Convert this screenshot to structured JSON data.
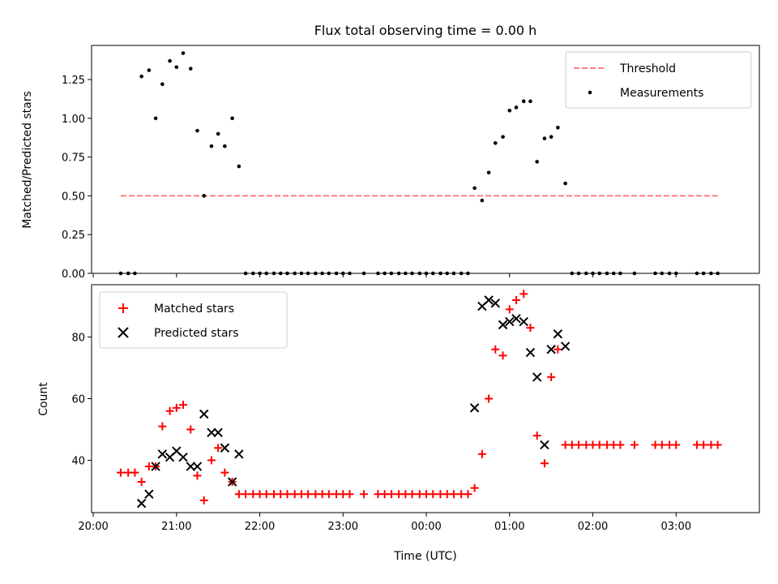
{
  "chart_data": {
    "title": "Flux total observing time = 0.00 h",
    "xlabel": "Time (UTC)",
    "x_tick_labels": [
      "20:00",
      "21:00",
      "22:00",
      "23:00",
      "00:00",
      "01:00",
      "02:00",
      "03:00"
    ],
    "x_tick_hours": [
      20,
      21,
      22,
      23,
      24,
      25,
      26,
      27
    ],
    "xlim": [
      19.98,
      28.0
    ],
    "panels": [
      {
        "type": "scatter",
        "ylabel": "Matched/Predicted stars",
        "ylim": [
          0,
          1.47
        ],
        "y_ticks": [
          0,
          0.25,
          0.5,
          0.75,
          1.0,
          1.25
        ],
        "y_tick_labels": [
          "0.00",
          "0.25",
          "0.50",
          "0.75",
          "1.00",
          "1.25"
        ],
        "legend": {
          "placement": "top-right",
          "entries": [
            "Threshold",
            "Measurements"
          ]
        },
        "threshold": {
          "name": "Threshold",
          "y": 0.5,
          "x_start": 20.33,
          "x_end": 27.5,
          "color": "#ff8080"
        },
        "series": [
          {
            "name": "Measurements",
            "color": "#000000",
            "marker": "dot",
            "x": [
              20.33,
              20.42,
              20.5,
              20.58,
              20.67,
              20.75,
              20.83,
              20.92,
              21.0,
              21.08,
              21.17,
              21.25,
              21.33,
              21.42,
              21.5,
              21.58,
              21.67,
              21.75,
              21.83,
              21.92,
              22.0,
              22.08,
              22.17,
              22.25,
              22.33,
              22.42,
              22.5,
              22.58,
              22.67,
              22.75,
              22.83,
              22.92,
              23.0,
              23.08,
              23.25,
              23.42,
              23.5,
              23.58,
              23.67,
              23.75,
              23.83,
              23.92,
              24.0,
              24.08,
              24.17,
              24.25,
              24.33,
              24.42,
              24.5,
              24.58,
              24.67,
              24.75,
              24.83,
              24.92,
              25.0,
              25.08,
              25.17,
              25.25,
              25.33,
              25.42,
              25.5,
              25.58,
              25.67,
              25.75,
              25.83,
              25.92,
              26.0,
              26.08,
              26.17,
              26.25,
              26.33,
              26.5,
              26.75,
              26.83,
              26.92,
              27.0,
              27.25,
              27.33,
              27.42,
              27.5
            ],
            "y": [
              0,
              0,
              0,
              1.27,
              1.31,
              1.0,
              1.22,
              1.37,
              1.33,
              1.42,
              1.32,
              0.92,
              0.5,
              0.82,
              0.9,
              0.82,
              1.0,
              0.69,
              0,
              0,
              0,
              0,
              0,
              0,
              0,
              0,
              0,
              0,
              0,
              0,
              0,
              0,
              0,
              0,
              0,
              0,
              0,
              0,
              0,
              0,
              0,
              0,
              0,
              0,
              0,
              0,
              0,
              0,
              0,
              0.55,
              0.47,
              0.65,
              0.84,
              0.88,
              1.05,
              1.07,
              1.11,
              1.11,
              0.72,
              0.87,
              0.88,
              0.94,
              0.58,
              0,
              0,
              0,
              0,
              0,
              0,
              0,
              0,
              0,
              0,
              0,
              0,
              0,
              0,
              0,
              0,
              0
            ]
          }
        ]
      },
      {
        "type": "scatter",
        "ylabel": "Count",
        "ylim": [
          23,
          97
        ],
        "y_ticks": [
          40,
          60,
          80
        ],
        "y_tick_labels": [
          "40",
          "60",
          "80"
        ],
        "legend": {
          "placement": "top-left",
          "entries": [
            "Matched stars",
            "Predicted stars"
          ]
        },
        "series": [
          {
            "name": "Matched stars",
            "color": "#ff0000",
            "marker": "plus",
            "x": [
              20.33,
              20.42,
              20.5,
              20.58,
              20.67,
              20.75,
              20.83,
              20.92,
              21.0,
              21.08,
              21.17,
              21.25,
              21.33,
              21.42,
              21.5,
              21.58,
              21.67,
              21.75,
              21.83,
              21.92,
              22.0,
              22.08,
              22.17,
              22.25,
              22.33,
              22.42,
              22.5,
              22.58,
              22.67,
              22.75,
              22.83,
              22.92,
              23.0,
              23.08,
              23.25,
              23.42,
              23.5,
              23.58,
              23.67,
              23.75,
              23.83,
              23.92,
              24.0,
              24.08,
              24.17,
              24.25,
              24.33,
              24.42,
              24.5,
              24.58,
              24.67,
              24.75,
              24.83,
              24.92,
              25.0,
              25.08,
              25.17,
              25.25,
              25.33,
              25.42,
              25.5,
              25.58,
              25.67,
              25.75,
              25.83,
              25.92,
              26.0,
              26.08,
              26.17,
              26.25,
              26.33,
              26.5,
              26.75,
              26.83,
              26.92,
              27.0,
              27.25,
              27.33,
              27.42,
              27.5
            ],
            "y": [
              36,
              36,
              36,
              33,
              38,
              38,
              51,
              56,
              57,
              58,
              50,
              35,
              27,
              40,
              44,
              36,
              33,
              29,
              29,
              29,
              29,
              29,
              29,
              29,
              29,
              29,
              29,
              29,
              29,
              29,
              29,
              29,
              29,
              29,
              29,
              29,
              29,
              29,
              29,
              29,
              29,
              29,
              29,
              29,
              29,
              29,
              29,
              29,
              29,
              31,
              42,
              60,
              76,
              74,
              89,
              92,
              94,
              83,
              48,
              39,
              67,
              76,
              45,
              45,
              45,
              45,
              45,
              45,
              45,
              45,
              45,
              45,
              45,
              45,
              45,
              45,
              45,
              45,
              45,
              45
            ]
          },
          {
            "name": "Predicted stars",
            "color": "#000000",
            "marker": "x",
            "x": [
              20.58,
              20.67,
              20.75,
              20.83,
              20.92,
              21.0,
              21.08,
              21.17,
              21.25,
              21.33,
              21.42,
              21.5,
              21.58,
              21.67,
              21.75,
              24.58,
              24.67,
              24.75,
              24.83,
              24.92,
              25.0,
              25.08,
              25.17,
              25.25,
              25.33,
              25.42,
              25.5,
              25.58,
              25.67
            ],
            "y": [
              26,
              29,
              38,
              42,
              41,
              43,
              41,
              38,
              38,
              55,
              49,
              49,
              44,
              33,
              42,
              57,
              90,
              92,
              91,
              84,
              85,
              86,
              85,
              75,
              67,
              45,
              76,
              81,
              77
            ]
          }
        ]
      }
    ]
  }
}
